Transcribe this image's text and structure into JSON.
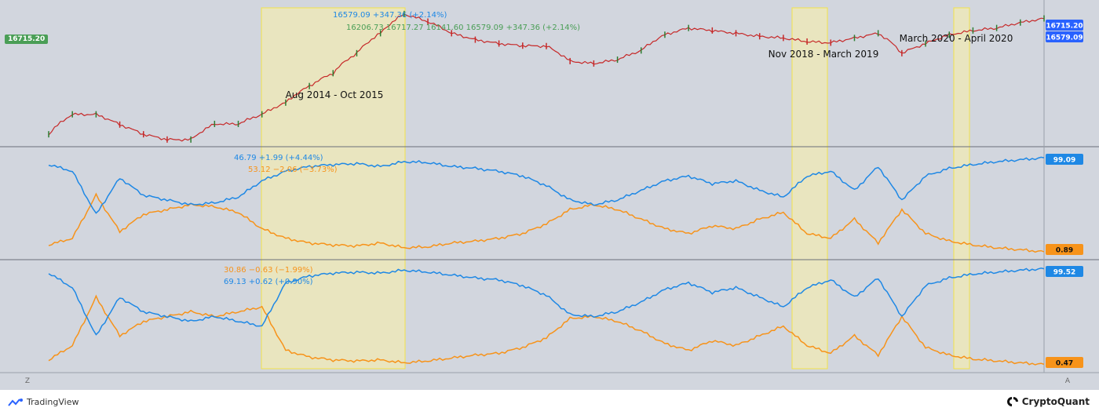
{
  "colors": {
    "background": "#d2d6de",
    "highlight": "#fbf3a6",
    "blue": "#1e88e5",
    "orange": "#f7931a",
    "price_up": "#2e7d32",
    "price_down": "#c62828",
    "price_tag": "#2962ff",
    "open_tag": "#4a9e56"
  },
  "header": {
    "legend1_values": "16579.09 +347.36 (+2.14%)",
    "legend2_values": "16206.73  16717.27  16141.60  16579.09  +347.36 (+2.14%)",
    "left_price_tag": "16715.20",
    "legend3_values": "46.79 +1.99 (+4.44%)",
    "legend4_values": "53.12 −2.06 (−3.73%)",
    "legend5_values": "30.86 −0.63 (−1.99%)",
    "legend6_values": "69.13 +0.62 (+0.90%)"
  },
  "axis_tags": {
    "price_high": "16715.20",
    "price_last": "16579.09",
    "pane2_top": "99.09",
    "pane2_bottom": "0.89",
    "pane3_top": "99.52",
    "pane3_bottom": "0.47"
  },
  "annotations": {
    "a1": "Aug 2014 - Oct 2015",
    "a2": "Nov 2018 - March 2019",
    "a3": "March 2020 - April 2020"
  },
  "controls": {
    "left_btn": "Z",
    "right_btn": "A"
  },
  "branding": {
    "tradingview": "TradingView",
    "cryptoquant": "CryptoQuant"
  },
  "chart_data": [
    {
      "type": "line",
      "series": [
        {
          "values": [
            300,
            600,
            600,
            420,
            300,
            250,
            250,
            430,
            430,
            600,
            900,
            1600,
            2500,
            5000,
            10000,
            19500,
            15000,
            10000,
            8000,
            7000,
            6500,
            6400,
            3800,
            3500,
            4000,
            5500,
            9500,
            12000,
            11000,
            10000,
            9000,
            8500,
            7500,
            7200,
            8500,
            10000,
            5000,
            7000,
            9500,
            11000,
            12000,
            14500,
            16715
          ]
        }
      ],
      "highlights": [
        "Aug 2014 - Oct 2015",
        "Nov 2018 - March 2019",
        "March 2020 - April 2020"
      ],
      "last_values": [
        16715.2,
        16579.09
      ]
    },
    {
      "type": "line",
      "series": [
        {
          "values": [
            92,
            85,
            40,
            78,
            60,
            55,
            50,
            52,
            58,
            75,
            85,
            90,
            92,
            93,
            90,
            95,
            94,
            90,
            88,
            85,
            80,
            70,
            55,
            50,
            55,
            65,
            75,
            80,
            72,
            75,
            65,
            58,
            80,
            85,
            65,
            90,
            55,
            80,
            88,
            92,
            95,
            97,
            99.09
          ]
        },
        {
          "values": [
            8,
            15,
            60,
            22,
            40,
            45,
            50,
            48,
            42,
            25,
            15,
            10,
            8,
            7,
            10,
            5,
            6,
            10,
            12,
            15,
            20,
            30,
            45,
            50,
            45,
            35,
            25,
            20,
            28,
            25,
            35,
            42,
            20,
            15,
            35,
            10,
            45,
            20,
            12,
            8,
            5,
            3,
            0.89
          ]
        }
      ],
      "last_values": [
        99.09,
        0.89
      ]
    },
    {
      "type": "line",
      "series": [
        {
          "values": [
            95,
            80,
            30,
            70,
            55,
            50,
            45,
            50,
            45,
            40,
            85,
            92,
            95,
            96,
            95,
            98,
            96,
            93,
            90,
            88,
            82,
            72,
            52,
            50,
            55,
            65,
            78,
            85,
            75,
            80,
            70,
            60,
            80,
            88,
            70,
            90,
            50,
            82,
            90,
            94,
            96,
            98,
            99.52
          ]
        },
        {
          "values": [
            5,
            20,
            70,
            30,
            45,
            50,
            55,
            50,
            55,
            60,
            15,
            8,
            5,
            4,
            5,
            2,
            4,
            7,
            10,
            12,
            18,
            28,
            48,
            50,
            45,
            35,
            22,
            15,
            25,
            20,
            30,
            40,
            20,
            12,
            30,
            10,
            50,
            18,
            10,
            6,
            4,
            2,
            0.47
          ]
        }
      ],
      "last_values": [
        99.52,
        0.47
      ]
    }
  ]
}
